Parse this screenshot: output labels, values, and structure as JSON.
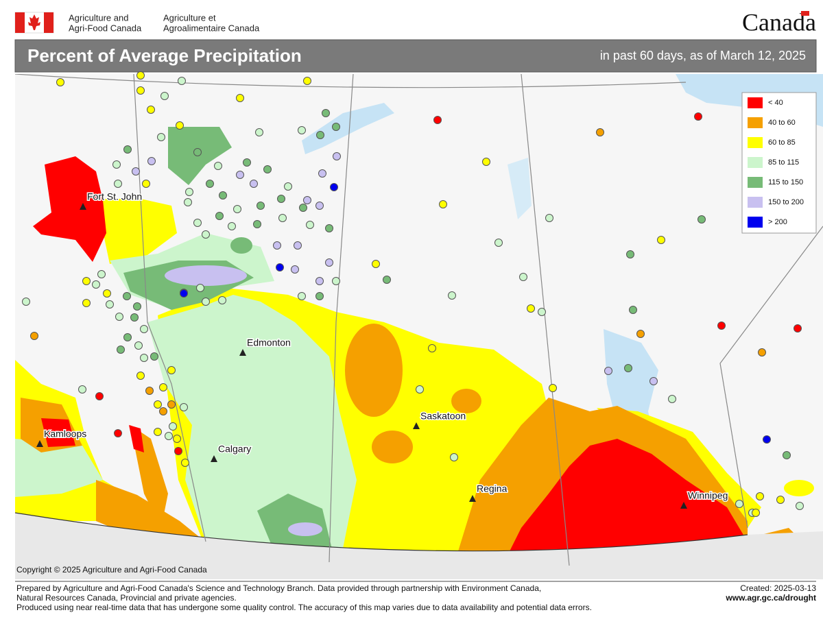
{
  "header": {
    "department_en": [
      "Agriculture and",
      "Agri-Food Canada"
    ],
    "department_fr": [
      "Agriculture et",
      "Agroalimentaire Canada"
    ],
    "wordmark": "Canada"
  },
  "title": "Percent of Average Precipitation",
  "subtitle": "in past 60 days, as of March 12, 2025",
  "legend": [
    {
      "label": "< 40",
      "color": "#ff0000"
    },
    {
      "label": "40 to 60",
      "color": "#f5a000"
    },
    {
      "label": "60 to 85",
      "color": "#ffff00"
    },
    {
      "label": "85 to 115",
      "color": "#ccf5cc"
    },
    {
      "label": "115 to 150",
      "color": "#77bb77"
    },
    {
      "label": "150 to 200",
      "color": "#c8c0f0"
    },
    {
      "label": "> 200",
      "color": "#0000ee"
    }
  ],
  "cities": [
    "Fort St. John",
    "Edmonton",
    "Saskatoon",
    "Kamloops",
    "Calgary",
    "Regina",
    "Winnipeg"
  ],
  "copyright": "Copyright © 2025 Agriculture and Agri-Food Canada",
  "footer": {
    "notes": [
      "Prepared by Agriculture and Agri-Food Canada's Science and Technology Branch. Data provided through partnership with Environment Canada,",
      "Natural Resources Canada, Provincial and private agencies.",
      "Produced using near real-time data that has undergone some quality control. The accuracy of this map varies due to data availability and potential data errors."
    ],
    "created": "Created: 2025-03-13",
    "url": "www.agr.gc.ca/drought"
  }
}
